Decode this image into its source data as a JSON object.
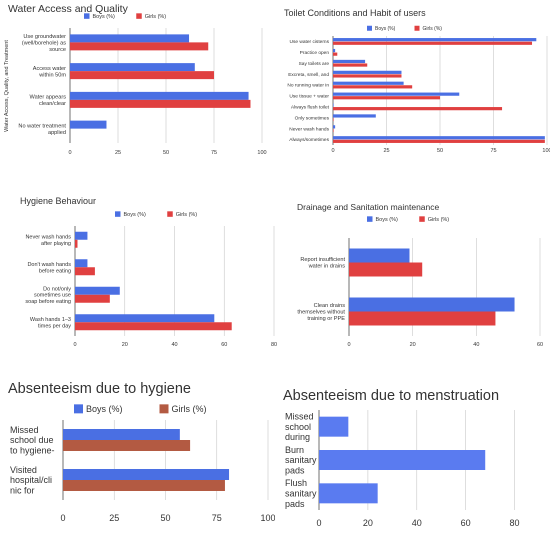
{
  "colors": {
    "boys": "#4a6fe3",
    "girls": "#e04040",
    "boys_alt": "#5a7bf0",
    "girls_alt": "#b35a42",
    "grid": "#c8c8c8",
    "text": "#222222"
  },
  "chart_data": [
    {
      "type": "bar",
      "orientation": "horizontal",
      "title": "Water Access and Quality",
      "ylabel": "Water Access, Quality, and Treatment",
      "categories": [
        "Use groundwater (well/borehole) as source",
        "Access water within 50m",
        "Water appears clean/clear",
        "No water treatment applied"
      ],
      "category_lines": [
        [
          "Use groundwater",
          "(well/borehole) as",
          "source"
        ],
        [
          "Access water",
          "within 50m"
        ],
        [
          "Water appears",
          "clean/clear"
        ],
        [
          "No water treatment",
          "applied"
        ]
      ],
      "series": [
        {
          "name": "Boys (%)",
          "values": [
            62,
            65,
            93,
            19
          ]
        },
        {
          "name": "Girls (%)",
          "values": [
            72,
            75,
            94,
            null
          ]
        }
      ],
      "xlim": [
        0,
        100
      ],
      "xticks": [
        0,
        25,
        50,
        75,
        100
      ],
      "legend": "top"
    },
    {
      "type": "bar",
      "orientation": "horizontal",
      "title": "Toilet Conditions and Habit of users",
      "categories": [
        "Use water cisterns",
        "Practice open",
        "Say toilets are",
        "Excreta, smell, and",
        "No running water in",
        "Use tissue + water",
        "Always flush toilet",
        "Only sometimes",
        "Never wash hands",
        "Always/sometimes"
      ],
      "series": [
        {
          "name": "Boys (%)",
          "values": [
            95,
            1,
            15,
            32,
            33,
            59,
            0,
            20,
            1,
            99
          ]
        },
        {
          "name": "Girls (%)",
          "values": [
            93,
            2,
            16,
            32,
            37,
            50,
            79,
            0,
            0,
            99
          ]
        }
      ],
      "xlim": [
        0,
        100
      ],
      "xticks": [
        0,
        25,
        50,
        75,
        100
      ],
      "legend": "top-right"
    },
    {
      "type": "bar",
      "orientation": "horizontal",
      "title": "Hygiene Behaviour",
      "categories": [
        "Never wash hands after playing",
        "Don't wash hands before eating",
        "Do not/only sometimes use soap before eating",
        "Wash hands 1–3 times per day"
      ],
      "category_lines": [
        [
          "Never wash hands",
          "after playing"
        ],
        [
          "Don't wash hands",
          "before eating"
        ],
        [
          "Do not/only",
          "sometimes use",
          "soap before eating"
        ],
        [
          "Wash hands 1–3",
          "times per day"
        ]
      ],
      "series": [
        {
          "name": "Boys (%)",
          "values": [
            5,
            5,
            18,
            56
          ]
        },
        {
          "name": "Girls (%)",
          "values": [
            1,
            8,
            14,
            63
          ]
        }
      ],
      "xlim": [
        0,
        80
      ],
      "xticks": [
        0,
        20,
        40,
        60,
        80
      ],
      "legend": "top"
    },
    {
      "type": "bar",
      "orientation": "horizontal",
      "title": "Drainage and Sanitation maintenance",
      "categories": [
        "Report insufficient water in drains",
        "Clean drains themselves without training or PPE"
      ],
      "category_lines": [
        [
          "Report insufficient",
          "water in drains"
        ],
        [
          "Clean drains",
          "themselves without",
          "training or PPE"
        ]
      ],
      "series": [
        {
          "name": "Boys (%)",
          "values": [
            19,
            52
          ]
        },
        {
          "name": "Girls (%)",
          "values": [
            23,
            46
          ]
        }
      ],
      "xlim": [
        0,
        60
      ],
      "xticks": [
        0,
        20,
        40,
        60
      ],
      "legend": "top"
    },
    {
      "type": "bar",
      "orientation": "horizontal",
      "title": "Absenteeism due to hygiene",
      "categories": [
        "Missed school due to hygiene-",
        "Visited hospital/clinic for"
      ],
      "category_lines": [
        [
          "Missed",
          "school due",
          "to hygiene-"
        ],
        [
          "Visited",
          "hospital/cli",
          "nic for"
        ]
      ],
      "series": [
        {
          "name": "Boys (%)",
          "values": [
            57,
            81
          ]
        },
        {
          "name": "Girls (%)",
          "values": [
            62,
            79
          ]
        }
      ],
      "xlim": [
        0,
        100
      ],
      "xticks": [
        0,
        25,
        50,
        75,
        100
      ],
      "legend": "top"
    },
    {
      "type": "bar",
      "orientation": "horizontal",
      "title": "Absenteeism due to menstruation",
      "categories": [
        "Missed school during",
        "Burn sanitary pads",
        "Flush sanitary pads"
      ],
      "category_lines": [
        [
          "Missed",
          "school",
          "during"
        ],
        [
          "Burn",
          "sanitary",
          "pads"
        ],
        [
          "Flush",
          "sanitary",
          "pads"
        ]
      ],
      "series": [
        {
          "values": [
            12,
            68,
            24
          ]
        }
      ],
      "xlim": [
        0,
        90
      ],
      "xticks": [
        0,
        20,
        40,
        60,
        80
      ]
    }
  ]
}
